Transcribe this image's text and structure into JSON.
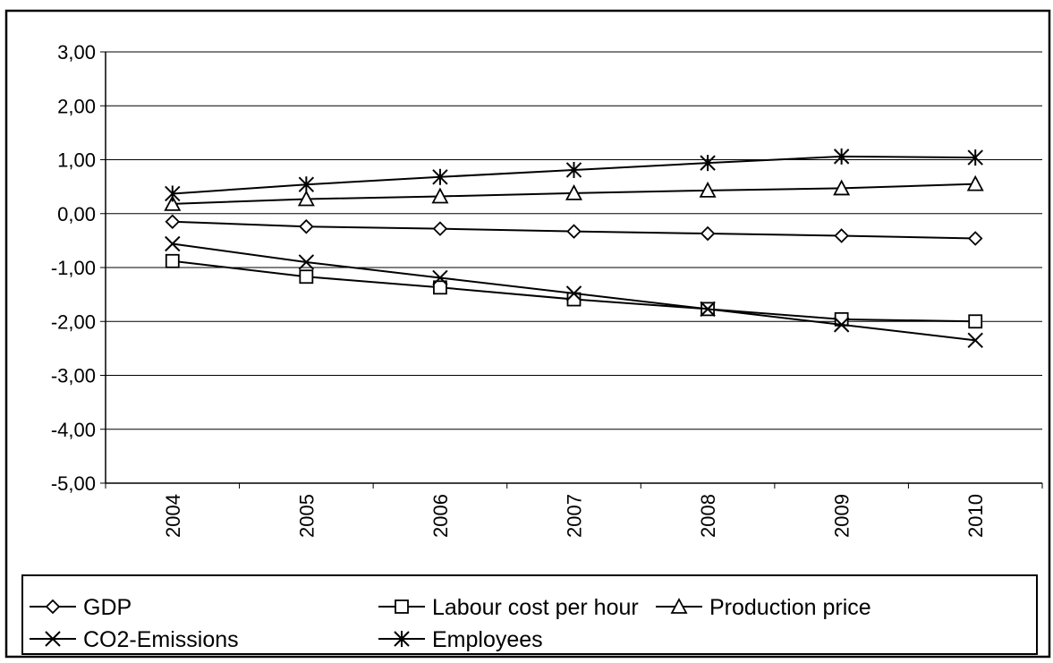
{
  "chart_data": {
    "type": "line",
    "title": "",
    "xlabel": "",
    "ylabel": "",
    "categories": [
      "2004",
      "2005",
      "2006",
      "2007",
      "2008",
      "2009",
      "2010"
    ],
    "ylim": [
      -5,
      3
    ],
    "y_ticks": [
      3,
      2,
      1,
      0,
      -1,
      -2,
      -3,
      -4,
      -5
    ],
    "y_tick_labels": [
      "3,00",
      "2,00",
      "1,00",
      "0,00",
      "-1,00",
      "-2,00",
      "-3,00",
      "-4,00",
      "-5,00"
    ],
    "grid": true,
    "legend_position": "bottom",
    "series": [
      {
        "name": "GDP",
        "marker": "diamond",
        "values": [
          -0.15,
          -0.24,
          -0.28,
          -0.33,
          -0.37,
          -0.41,
          -0.46
        ]
      },
      {
        "name": "Labour cost per hour",
        "marker": "square",
        "values": [
          -0.88,
          -1.17,
          -1.37,
          -1.59,
          -1.77,
          -1.96,
          -2.0
        ]
      },
      {
        "name": "Production price",
        "marker": "triangle",
        "values": [
          0.18,
          0.27,
          0.32,
          0.38,
          0.43,
          0.47,
          0.55
        ]
      },
      {
        "name": "CO2-Emissions",
        "marker": "x",
        "values": [
          -0.56,
          -0.9,
          -1.19,
          -1.48,
          -1.77,
          -2.06,
          -2.35
        ]
      },
      {
        "name": "Employees",
        "marker": "star",
        "values": [
          0.37,
          0.54,
          0.68,
          0.81,
          0.94,
          1.06,
          1.04
        ]
      }
    ]
  }
}
